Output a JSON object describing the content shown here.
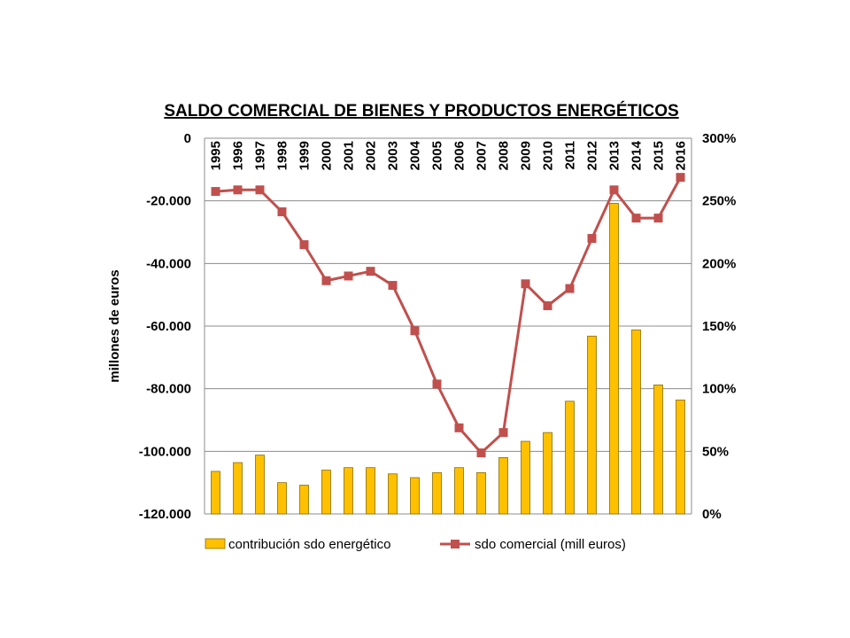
{
  "chart_data": {
    "type": "bar",
    "title": "SALDO COMERCIAL DE BIENES Y PRODUCTOS ENERGÉTICOS",
    "ylabel": "millones de euros",
    "y2label": "",
    "categories": [
      "1995",
      "1996",
      "1997",
      "1998",
      "1999",
      "2000",
      "2001",
      "2002",
      "2003",
      "2004",
      "2005",
      "2006",
      "2007",
      "2008",
      "2009",
      "2010",
      "2011",
      "2012",
      "2013",
      "2014",
      "2015",
      "2016"
    ],
    "ylim": [
      -120000,
      0
    ],
    "y2lim": [
      0,
      300
    ],
    "yticks": [
      "0",
      "-20.000",
      "-40.000",
      "-60.000",
      "-80.000",
      "-100.000",
      "-120.000"
    ],
    "y2ticks": [
      "300%",
      "250%",
      "200%",
      "150%",
      "100%",
      "50%",
      "0%"
    ],
    "grid": true,
    "legend_position": "bottom",
    "series": [
      {
        "name": "contribución sdo energético",
        "type": "bar",
        "axis": "right",
        "color": "#FFC000",
        "values": [
          34,
          41,
          47,
          25,
          23,
          35,
          37,
          37,
          32,
          29,
          33,
          37,
          33,
          45,
          58,
          65,
          90,
          142,
          248,
          147,
          103,
          91
        ]
      },
      {
        "name": "sdo comercial (mill euros)",
        "type": "line",
        "axis": "left",
        "color": "#C0504D",
        "values": [
          -17000,
          -16500,
          -16500,
          -23500,
          -34000,
          -45500,
          -44000,
          -42500,
          -47000,
          -61500,
          -78500,
          -92500,
          -100500,
          -94000,
          -46500,
          -53500,
          -48000,
          -32000,
          -16500,
          -25500,
          -25500,
          -12500
        ]
      }
    ]
  }
}
